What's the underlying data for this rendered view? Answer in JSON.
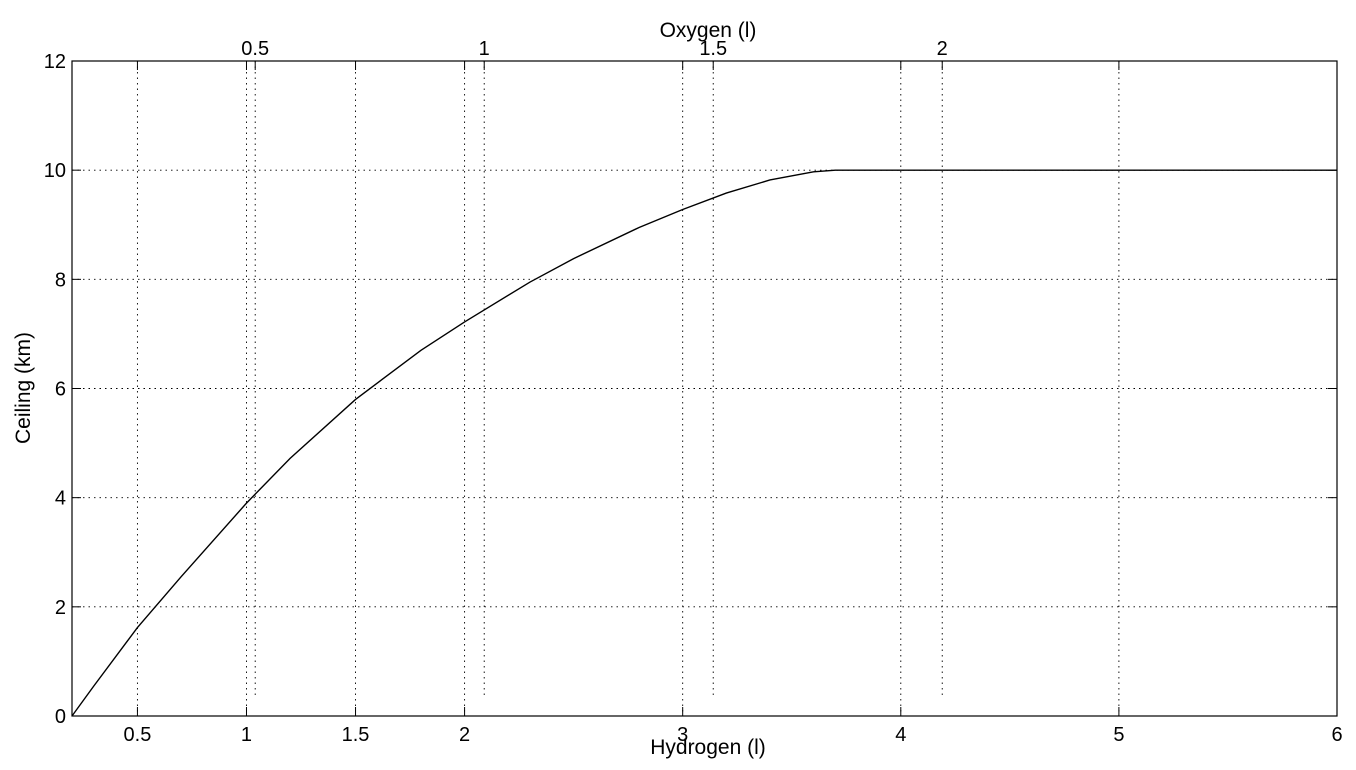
{
  "chart_data": {
    "type": "line",
    "title": "",
    "xlabel": "Hydrogen (l)",
    "x2label": "Oxygen (l)",
    "ylabel": "Ceiling (km)",
    "xlim": [
      0.2,
      6
    ],
    "ylim": [
      0,
      12
    ],
    "grid": true,
    "x_ticks": [
      0.5,
      1,
      1.5,
      2,
      3,
      4,
      5,
      6
    ],
    "x_tick_labels": [
      "0.5",
      "1",
      "1.5",
      "2",
      "3",
      "4",
      "5",
      "6"
    ],
    "x_grid": [
      0.5,
      1,
      1.5,
      2,
      3,
      4,
      5
    ],
    "x2_ticks": [
      0.5,
      1,
      1.5,
      2
    ],
    "x2_tick_labels": [
      "0.5",
      "1",
      "1.5",
      "2"
    ],
    "x2_ticks_in_x_units": [
      1.04,
      2.09,
      3.14,
      4.19
    ],
    "y_ticks": [
      0,
      2,
      4,
      6,
      8,
      10,
      12
    ],
    "y_tick_labels": [
      "0",
      "2",
      "4",
      "6",
      "8",
      "10",
      "12"
    ],
    "y_grid": [
      2,
      4,
      6,
      8,
      10
    ],
    "series": [
      {
        "x": [
          0.2,
          0.3,
          0.5,
          0.7,
          1.0,
          1.2,
          1.5,
          1.8,
          2.0,
          2.3,
          2.5,
          2.8,
          3.0,
          3.2,
          3.4,
          3.6,
          3.7,
          3.75,
          3.8,
          4.0,
          5.0,
          6.0
        ],
        "y": [
          0.0,
          0.55,
          1.62,
          2.55,
          3.9,
          4.72,
          5.8,
          6.7,
          7.22,
          7.95,
          8.38,
          8.95,
          9.28,
          9.58,
          9.82,
          9.97,
          10.0,
          10.0,
          10.0,
          10.0,
          10.0,
          10.0
        ]
      }
    ]
  }
}
